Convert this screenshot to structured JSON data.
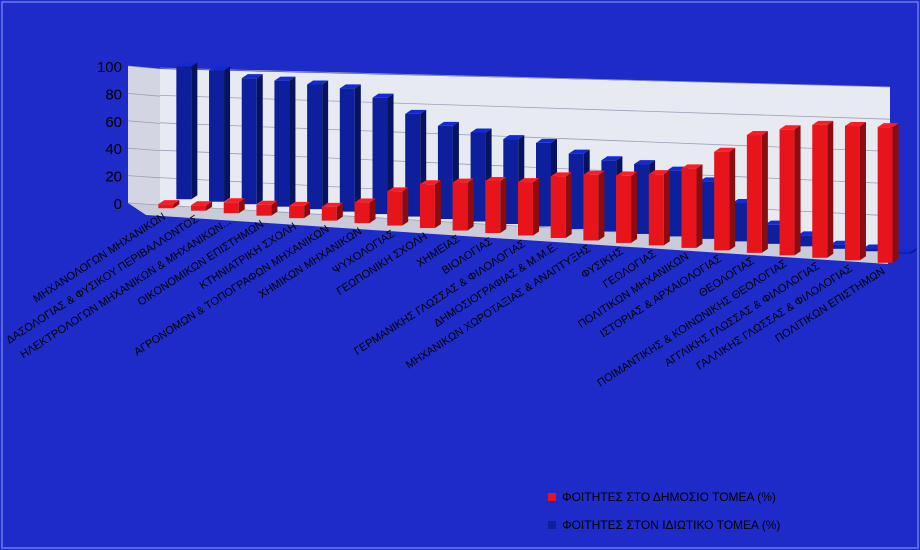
{
  "colors": {
    "background": "#1f2bc9",
    "plot_background": "#e8eaf2",
    "public": "#e8141c",
    "private": "#0d1f9c"
  },
  "chart_data": {
    "type": "bar",
    "title": "",
    "xlabel": "",
    "ylabel": "",
    "ylim": [
      0,
      100
    ],
    "yticks": [
      "0",
      "20",
      "40",
      "60",
      "80",
      "100"
    ],
    "grid": true,
    "legend_position": "bottom-right",
    "categories": [
      "ΜΗΧΑΝΟΛΟΓΩΝ ΜΗΧΑΝΙΚΩΝ",
      "ΔΑΣΟΛΟΓΙΑΣ & ΦΥΣΙΚΟΥ ΠΕΡΙΒΑΛΛΟΝΤΟΣ",
      "ΗΛΕΚΤΡΟΛΟΓΩΝ ΜΗΧΑΝΙΚΩΝ & ΜΗΧΑΝΙΚΩΝ...",
      "ΟΙΚΟΝΟΜΙΚΩΝ ΕΠΙΣΤΗΜΩΝ",
      "ΚΤΗΝΙΑΤΡΙΚΗ ΣΧΟΛΗ",
      "ΑΓΡΟΝΟΜΩΝ & ΤΟΠΟΓΡΑΦΩΝ ΜΗΧΑΝΙΚΩΝ",
      "ΧΗΜΙΚΩΝ ΜΗΧΑΝΙΚΩΝ",
      "ΨΥΧΟΛΟΓΙΑΣ",
      "ΓΕΩΠΟΝΙΚΗ ΣΧΟΛΗ",
      "ΧΗΜΕΙΑΣ",
      "ΒΙΟΛΟΓΙΑΣ",
      "ΓΕΡΜΑΝΙΚΗΣ ΓΛΩΣΣΑΣ & ΦΙΛΟΛΟΓΙΑΣ",
      "ΔΗΜΟΣΙΟΓΡΑΦΙΑΣ & Μ.Μ.Ε.",
      "ΜΗΧΑΝΙΚΩΝ ΧΩΡΟΤΑΞΙΑΣ & ΑΝΑΠΤΥΞΗΣ",
      "ΦΥΣΙΚΗΣ",
      "ΓΕΩΛΟΓΙΑΣ",
      "ΠΟΛΙΤΙΚΩΝ ΜΗΧΑΝΙΚΩΝ",
      "ΙΣΤΟΡΙΑΣ & ΑΡΧΑΙΟΛΟΓΙΑΣ",
      "ΘΕΟΛΟΓΙΑΣ",
      "ΠΟΙΜΑΝΤΙΚΗΣ & ΚΟΙΝΩΝΙΚΗΣ ΘΕΟΛΟΓΙΑΣ",
      "ΑΓΓΛΙΚΗΣ ΓΛΩΣΣΑΣ & ΦΙΛΟΛΟΓΙΑΣ",
      "ΓΑΛΛΙΚΗΣ ΓΛΩΣΣΑΣ & ΦΙΛΟΛΟΓΙΑΣ",
      "ΠΟΛΙΤΙΚΩΝ ΕΠΙΣΤΗΜΩΝ"
    ],
    "series": [
      {
        "name": "ΦΟΙΤΗΤΕΣ ΣΤΟ ΔΗΜΟΣΙΟ ΤΟΜΕΑ (%)",
        "values": [
          3,
          4,
          8,
          8,
          9,
          10,
          15,
          25,
          32,
          35,
          38,
          39,
          45,
          48,
          49,
          52,
          58,
          72,
          86,
          92,
          97,
          98,
          99
        ]
      },
      {
        "name": "ΦΟΙΤΗΤΕΣ ΣΤΟΝ ΙΔΙΩΤΙΚΟ ΤΟΜΕΑ (%)",
        "values": [
          97,
          96,
          92,
          92,
          91,
          90,
          85,
          75,
          68,
          65,
          62,
          61,
          55,
          52,
          51,
          48,
          42,
          28,
          14,
          8,
          3,
          2,
          1
        ]
      }
    ]
  },
  "legend": {
    "public_label": "ΦΟΙΤΗΤΕΣ ΣΤΟ ΔΗΜΟΣΙΟ ΤΟΜΕΑ (%)",
    "private_label": "ΦΟΙΤΗΤΕΣ ΣΤΟΝ ΙΔΙΩΤΙΚΟ ΤΟΜΕΑ (%)"
  }
}
